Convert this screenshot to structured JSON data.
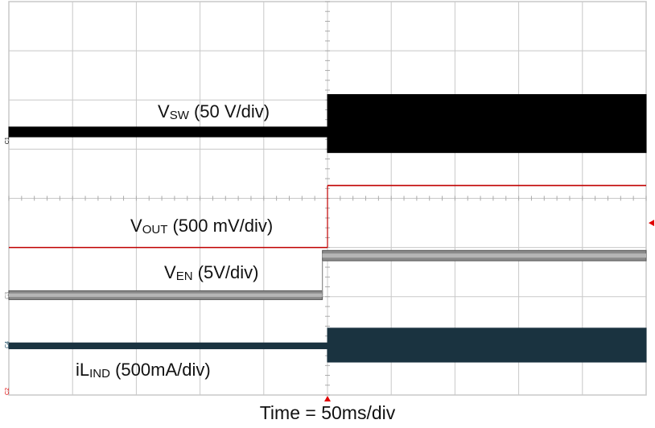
{
  "chart_data": {
    "type": "line",
    "title": "",
    "xlabel": "Time = 50ms/div",
    "x_unit": "ms",
    "xlim": [
      -250,
      250
    ],
    "ylim_div": [
      0,
      8
    ],
    "grid": true,
    "trigger_time": 0,
    "series": [
      {
        "key": "vsw",
        "name_main": "V",
        "name_sub": "SW",
        "scale": " (50 V/div)",
        "channel": "C1",
        "color": "#000000",
        "style": "band",
        "segments": [
          {
            "t": [
              -250,
              0
            ],
            "low": 5.25,
            "high": 5.45
          },
          {
            "t": [
              0,
              250
            ],
            "low": 4.93,
            "high": 6.11
          }
        ]
      },
      {
        "key": "vout",
        "name_main": "V",
        "name_sub": "OUT",
        "scale": " (500 mV/div)",
        "channel": "C2",
        "color": "#c00000",
        "style": "line",
        "segments": [
          {
            "t": [
              -250,
              0
            ],
            "low": 3.0,
            "high": 3.0
          },
          {
            "t": [
              0,
              250
            ],
            "low": 4.26,
            "high": 4.26
          }
        ]
      },
      {
        "key": "ven",
        "name_main": "V",
        "name_sub": "EN",
        "scale": " (5V/div)",
        "channel": "C3",
        "color": "#8a8a8a",
        "style": "band",
        "segments": [
          {
            "t": [
              -250,
              -4
            ],
            "low": 1.94,
            "high": 2.12
          },
          {
            "t": [
              -4,
              250
            ],
            "low": 2.73,
            "high": 2.94
          }
        ]
      },
      {
        "key": "il",
        "name_main": "iL",
        "name_sub": "IND",
        "scale": " (500mA/div)",
        "channel": "C4",
        "color": "#1d4f66",
        "style": "band",
        "segments": [
          {
            "t": [
              -250,
              0
            ],
            "low": 0.94,
            "high": 1.06
          },
          {
            "t": [
              0,
              250
            ],
            "low": 0.67,
            "high": 1.36
          }
        ]
      }
    ]
  },
  "colors": {
    "grid": "#c8c8c8",
    "vsw": "#000000",
    "vout": "#c00000",
    "ven": "#8a8a8a",
    "il": "#1a3340"
  }
}
